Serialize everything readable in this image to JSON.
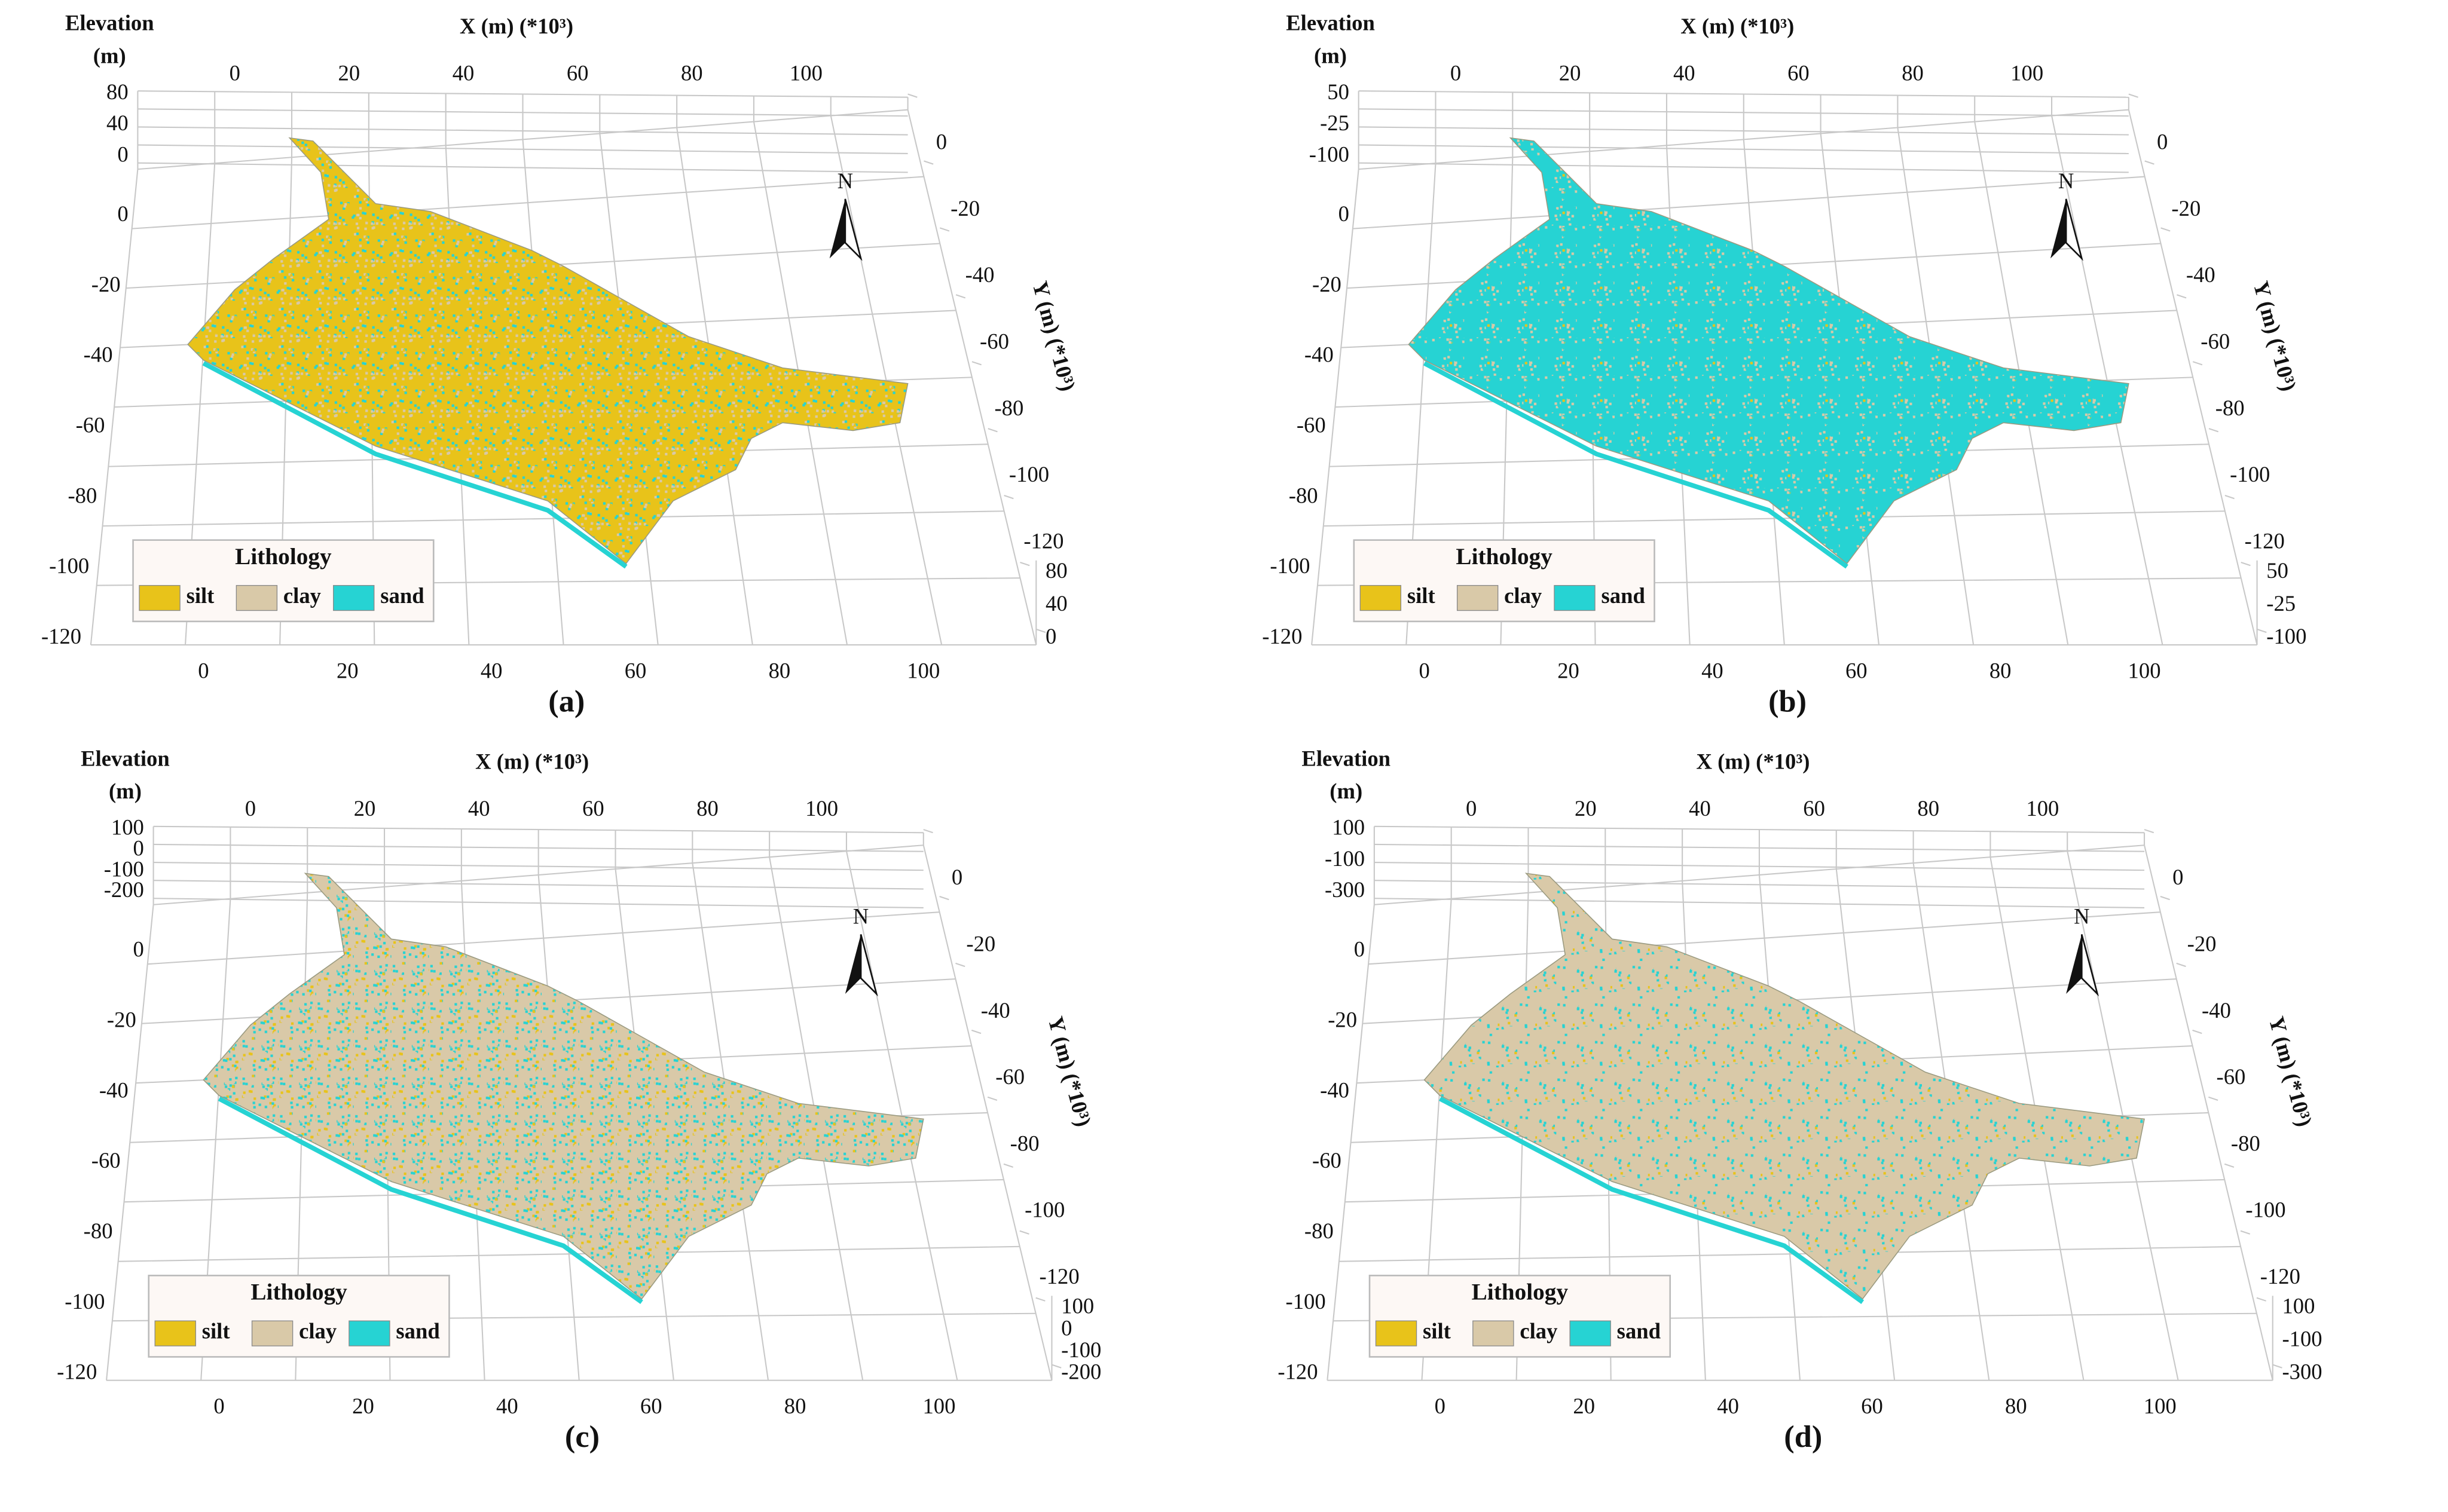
{
  "panels": [
    {
      "label": "(a)",
      "elevation_label": "Elevation",
      "elevation_unit": "(m)",
      "x_axis_label": "X (m) (*10³)",
      "y_axis_label": "Y (m) (*10³)",
      "x_ticks": [
        0,
        20,
        40,
        60,
        80,
        100
      ],
      "y_ticks": [
        0,
        -20,
        -40,
        -60,
        -80,
        -100,
        -120
      ],
      "left_ticks": [
        0,
        -20,
        -40,
        -60,
        -80,
        -100,
        -120
      ],
      "bottom_ticks": [
        0,
        20,
        40,
        60,
        80,
        100
      ],
      "elev_ticks_left": [
        80,
        40,
        0
      ],
      "elev_ticks_right": [
        80,
        40,
        0
      ],
      "north": "N",
      "legend": {
        "title": "Lithology",
        "items": [
          {
            "name": "silt",
            "color": "#e8c31a"
          },
          {
            "name": "clay",
            "color": "#d9c9a8"
          },
          {
            "name": "sand",
            "color": "#26d3d3"
          }
        ]
      }
    },
    {
      "label": "(b)",
      "elevation_label": "Elevation",
      "elevation_unit": "(m)",
      "x_axis_label": "X (m) (*10³)",
      "y_axis_label": "Y (m) (*10³)",
      "x_ticks": [
        0,
        20,
        40,
        60,
        80,
        100
      ],
      "y_ticks": [
        0,
        -20,
        -40,
        -60,
        -80,
        -100,
        -120
      ],
      "left_ticks": [
        0,
        -20,
        -40,
        -60,
        -80,
        -100,
        -120
      ],
      "bottom_ticks": [
        0,
        20,
        40,
        60,
        80,
        100
      ],
      "elev_ticks_left": [
        50,
        -25,
        -100
      ],
      "elev_ticks_right": [
        50,
        -25,
        -100
      ],
      "north": "N",
      "legend": {
        "title": "Lithology",
        "items": [
          {
            "name": "silt",
            "color": "#e8c31a"
          },
          {
            "name": "clay",
            "color": "#d9c9a8"
          },
          {
            "name": "sand",
            "color": "#26d3d3"
          }
        ]
      }
    },
    {
      "label": "(c)",
      "elevation_label": "Elevation",
      "elevation_unit": "(m)",
      "x_axis_label": "X (m) (*10³)",
      "y_axis_label": "Y (m) (*10³)",
      "x_ticks": [
        0,
        20,
        40,
        60,
        80,
        100
      ],
      "y_ticks": [
        0,
        -20,
        -40,
        -60,
        -80,
        -100,
        -120
      ],
      "left_ticks": [
        0,
        -20,
        -40,
        -60,
        -80,
        -100,
        -120
      ],
      "bottom_ticks": [
        0,
        20,
        40,
        60,
        80,
        100
      ],
      "elev_ticks_left": [
        100,
        0,
        -100,
        -200
      ],
      "elev_ticks_right": [
        100,
        0,
        -100,
        -200
      ],
      "north": "N",
      "legend": {
        "title": "Lithology",
        "items": [
          {
            "name": "silt",
            "color": "#e8c31a"
          },
          {
            "name": "clay",
            "color": "#d9c9a8"
          },
          {
            "name": "sand",
            "color": "#26d3d3"
          }
        ]
      }
    },
    {
      "label": "(d)",
      "elevation_label": "Elevation",
      "elevation_unit": "(m)",
      "x_axis_label": "X (m) (*10³)",
      "y_axis_label": "Y (m) (*10³)",
      "x_ticks": [
        0,
        20,
        40,
        60,
        80,
        100
      ],
      "y_ticks": [
        0,
        -20,
        -40,
        -60,
        -80,
        -100,
        -120
      ],
      "left_ticks": [
        0,
        -20,
        -40,
        -60,
        -80,
        -100,
        -120
      ],
      "bottom_ticks": [
        0,
        20,
        40,
        60,
        80,
        100
      ],
      "elev_ticks_left": [
        100,
        -100,
        -300
      ],
      "elev_ticks_right": [
        100,
        -100,
        -300
      ],
      "north": "N",
      "legend": {
        "title": "Lithology",
        "items": [
          {
            "name": "silt",
            "color": "#e8c31a"
          },
          {
            "name": "clay",
            "color": "#d9c9a8"
          },
          {
            "name": "sand",
            "color": "#26d3d3"
          }
        ]
      }
    }
  ]
}
